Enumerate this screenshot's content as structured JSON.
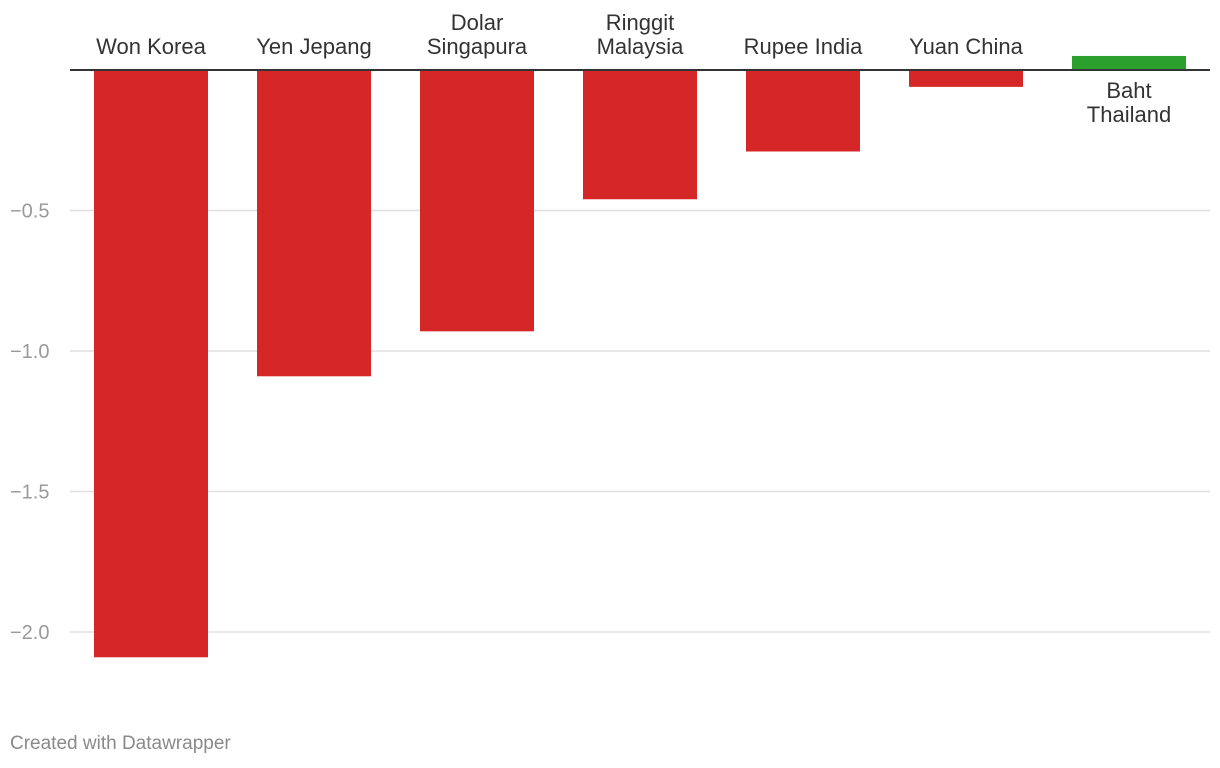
{
  "chart_data": {
    "type": "bar",
    "orientation": "vertical",
    "categories": [
      [
        "Won Korea"
      ],
      [
        "Yen Jepang"
      ],
      [
        "Dolar",
        "Singapura"
      ],
      [
        "Ringgit",
        "Malaysia"
      ],
      [
        "Rupee India"
      ],
      [
        "Yuan China"
      ],
      [
        "Baht",
        "Thailand"
      ]
    ],
    "values": [
      -2.09,
      -1.09,
      -0.93,
      -0.46,
      -0.29,
      -0.06,
      0.05
    ],
    "ylim": [
      -2.1,
      0.05
    ],
    "yticks": [
      -0.5,
      -1.0,
      -1.5,
      -2.0
    ],
    "ytick_labels": [
      "−0.5",
      "−1.0",
      "−1.5",
      "−2.0"
    ],
    "grid": true,
    "title": "",
    "xlabel": "",
    "ylabel": "",
    "colors": {
      "negative": "#d62728",
      "positive": "#2ca02c",
      "gridline": "#e0e0e0",
      "baseline": "#333333"
    }
  },
  "footer": {
    "credit": "Created with Datawrapper"
  }
}
